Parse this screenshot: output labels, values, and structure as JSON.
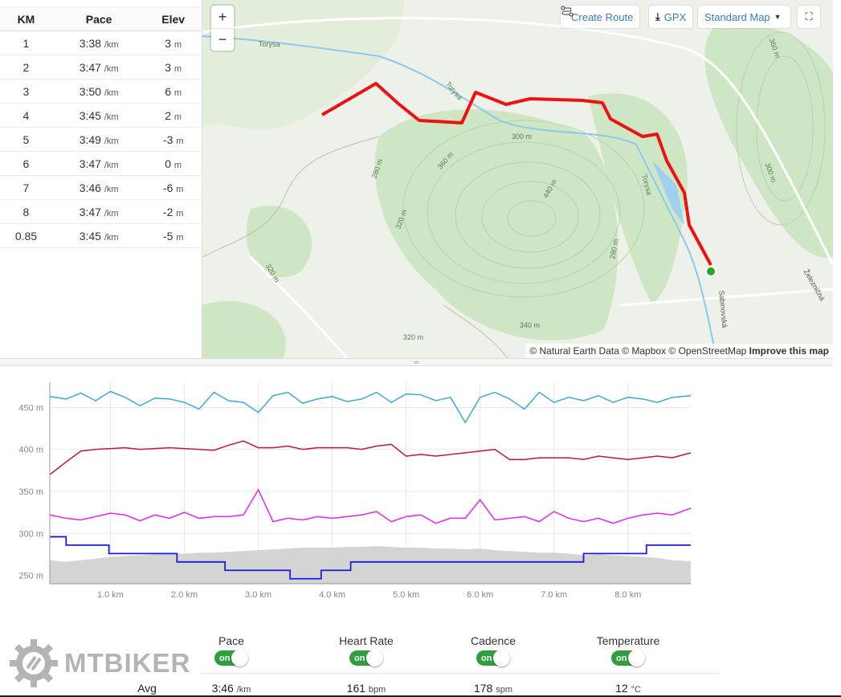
{
  "splits": {
    "headers": [
      "KM",
      "Pace",
      "Elev"
    ],
    "pace_unit": "/km",
    "elev_unit": "m",
    "rows": [
      [
        "1",
        "3:38",
        "3"
      ],
      [
        "2",
        "3:47",
        "3"
      ],
      [
        "3",
        "3:50",
        "6"
      ],
      [
        "4",
        "3:45",
        "2"
      ],
      [
        "5",
        "3:49",
        "-3"
      ],
      [
        "6",
        "3:47",
        "0"
      ],
      [
        "7",
        "3:46",
        "-6"
      ],
      [
        "8",
        "3:47",
        "-2"
      ],
      [
        "0.85",
        "3:45",
        "-5"
      ]
    ]
  },
  "map": {
    "create_route": "Create Route",
    "gpx": "GPX",
    "style": "Standard Map",
    "zoom_in": "+",
    "zoom_out": "−",
    "labels": [
      "Torysa",
      "Torysa",
      "Torysa",
      "300 m",
      "360 m",
      "440 m",
      "320 m",
      "280 m",
      "280 m",
      "320 m",
      "360 m",
      "300 m",
      "340 m",
      "320 m",
      "Sabinovská",
      "Železničná"
    ],
    "attribution": "© Natural Earth Data © Mapbox © OpenStreetMap",
    "improve": "Improve this map",
    "route_color": "#ee1111",
    "start_color": "#22aa22"
  },
  "chart_data": {
    "type": "line",
    "xlabel": "",
    "ylabel": "",
    "xlim": [
      0.18,
      8.85
    ],
    "ylim": [
      240,
      480
    ],
    "xticks": [
      1,
      2,
      3,
      4,
      5,
      6,
      7,
      8
    ],
    "xtick_labels": [
      "1.0 km",
      "2.0 km",
      "3.0 km",
      "4.0 km",
      "5.0 km",
      "6.0 km",
      "7.0 km",
      "8.0 km"
    ],
    "yticks": [
      250,
      300,
      350,
      400,
      450
    ],
    "ytick_labels": [
      "250 m",
      "300 m",
      "350 m",
      "400 m",
      "450 m"
    ],
    "grid": true,
    "x": [
      0.18,
      0.4,
      0.6,
      0.8,
      1.0,
      1.2,
      1.4,
      1.6,
      1.8,
      2.0,
      2.2,
      2.4,
      2.6,
      2.8,
      3.0,
      3.2,
      3.4,
      3.6,
      3.8,
      4.0,
      4.2,
      4.4,
      4.6,
      4.8,
      5.0,
      5.2,
      5.4,
      5.6,
      5.8,
      6.0,
      6.2,
      6.4,
      6.6,
      6.8,
      7.0,
      7.2,
      7.4,
      7.6,
      7.8,
      8.0,
      8.2,
      8.4,
      8.6,
      8.85
    ],
    "elevation": {
      "name": "Elevation",
      "color": "#d4d4d4",
      "values": [
        268,
        266,
        268,
        270,
        272,
        273,
        274,
        275,
        276,
        276,
        277,
        277,
        278,
        279,
        280,
        281,
        282,
        283,
        283,
        283,
        284,
        284,
        285,
        284,
        283,
        283,
        282,
        282,
        281,
        282,
        280,
        279,
        278,
        277,
        277,
        276,
        274,
        275,
        274,
        273,
        272,
        271,
        268,
        267
      ]
    },
    "series": [
      {
        "name": "Temperature",
        "color": "#3aaad8",
        "values": [
          463,
          460,
          467,
          458,
          469,
          462,
          452,
          461,
          460,
          456,
          448,
          468,
          458,
          456,
          444,
          464,
          468,
          455,
          460,
          463,
          457,
          460,
          468,
          456,
          466,
          465,
          458,
          462,
          432,
          462,
          468,
          460,
          448,
          468,
          456,
          462,
          458,
          464,
          456,
          462,
          460,
          456,
          462,
          464
        ]
      },
      {
        "name": "Heart Rate",
        "color": "#cc1144",
        "values": [
          370,
          385,
          398,
          400,
          401,
          402,
          400,
          401,
          402,
          401,
          400,
          399,
          405,
          410,
          402,
          402,
          404,
          400,
          402,
          402,
          402,
          400,
          404,
          406,
          392,
          394,
          392,
          394,
          396,
          398,
          400,
          388,
          388,
          390,
          390,
          390,
          388,
          392,
          390,
          388,
          390,
          392,
          390,
          396
        ]
      },
      {
        "name": "Cadence",
        "color": "#ee22ee",
        "values": [
          322,
          318,
          316,
          320,
          324,
          322,
          315,
          322,
          318,
          325,
          318,
          320,
          320,
          322,
          352,
          314,
          318,
          316,
          320,
          318,
          320,
          322,
          326,
          314,
          320,
          322,
          312,
          318,
          318,
          340,
          316,
          318,
          320,
          314,
          326,
          318,
          314,
          318,
          312,
          318,
          322,
          324,
          322,
          330
        ]
      }
    ],
    "pace_steps": {
      "name": "Pace",
      "color": "#1a1ae0",
      "x": [
        0.18,
        0.4,
        0.98,
        1.9,
        2.55,
        3.43,
        3.85,
        4.25,
        7.4,
        8.25,
        8.85
      ],
      "values": [
        296,
        286,
        276,
        266,
        256,
        246,
        256,
        266,
        276,
        286,
        286
      ]
    }
  },
  "controls": {
    "logo": "MTBIKER",
    "toggles": [
      {
        "label": "Pace",
        "state": "on"
      },
      {
        "label": "Heart Rate",
        "state": "on"
      },
      {
        "label": "Cadence",
        "state": "on"
      },
      {
        "label": "Temperature",
        "state": "on"
      }
    ]
  },
  "avg": {
    "label": "Avg",
    "values": [
      {
        "v": "3:46",
        "u": "/km"
      },
      {
        "v": "161",
        "u": "bpm"
      },
      {
        "v": "178",
        "u": "spm"
      },
      {
        "v": "12",
        "u": "°C"
      }
    ]
  }
}
